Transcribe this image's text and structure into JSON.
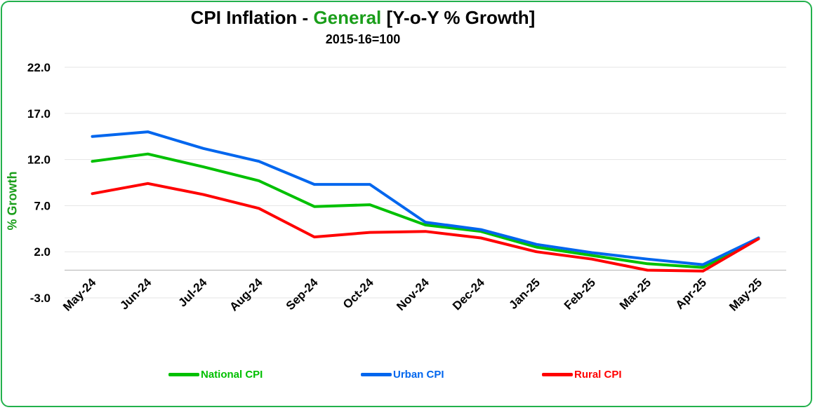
{
  "title": {
    "prefix": "CPI Inflation - ",
    "highlight": "General",
    "suffix": " [Y-o-Y % Growth]"
  },
  "subtitle": "2015-16=100",
  "chart_data": {
    "type": "line",
    "title": "CPI Inflation - General [Y-o-Y % Growth]",
    "subtitle": "2015-16=100",
    "ylabel": "% Growth",
    "xlabel": "",
    "ylim": [
      -3.0,
      22.0
    ],
    "yticks": [
      "22.0",
      "17.0",
      "12.0",
      "7.0",
      "2.0",
      "-3.0"
    ],
    "ytick_values": [
      22,
      17,
      12,
      7,
      2,
      -3
    ],
    "grid": true,
    "legend_position": "bottom",
    "categories": [
      "May-24",
      "Jun-24",
      "Jul-24",
      "Aug-24",
      "Sep-24",
      "Oct-24",
      "Nov-24",
      "Dec-24",
      "Jan-25",
      "Feb-25",
      "Mar-25",
      "Apr-25",
      "May-25"
    ],
    "series": [
      {
        "name": "National CPI",
        "color": "#00c000",
        "values": [
          11.8,
          12.6,
          11.2,
          9.7,
          6.9,
          7.1,
          4.9,
          4.2,
          2.5,
          1.6,
          0.7,
          0.3,
          3.5
        ]
      },
      {
        "name": "Urban CPI",
        "color": "#0066ee",
        "values": [
          14.5,
          15.0,
          13.2,
          11.8,
          9.3,
          9.3,
          5.2,
          4.4,
          2.8,
          1.9,
          1.2,
          0.6,
          3.5
        ]
      },
      {
        "name": "Rural CPI",
        "color": "#ff0000",
        "values": [
          8.3,
          9.4,
          8.2,
          6.7,
          3.6,
          4.1,
          4.2,
          3.5,
          2.0,
          1.2,
          0.0,
          -0.1,
          3.4
        ]
      }
    ]
  }
}
